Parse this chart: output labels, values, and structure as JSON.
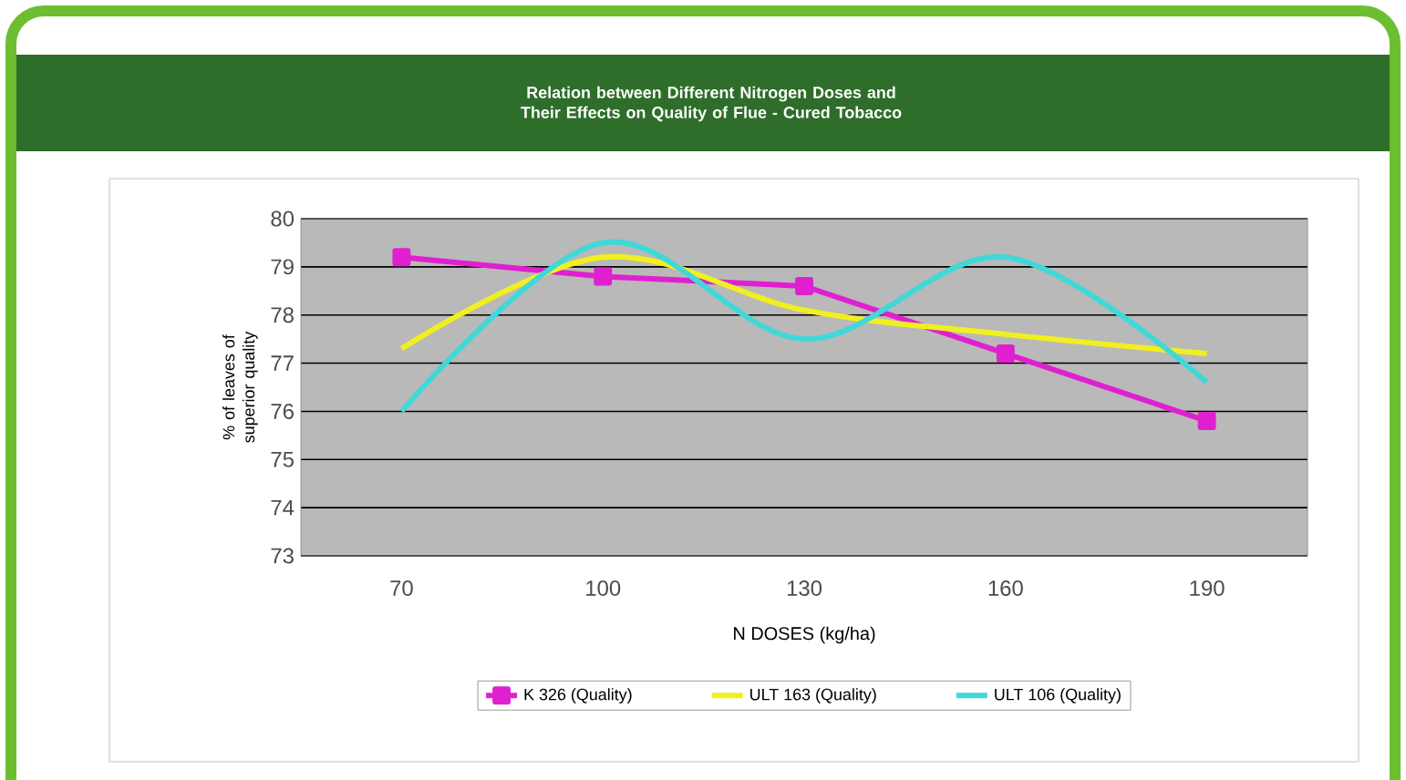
{
  "chart_data": {
    "type": "line",
    "title": "Relation between Different Nitrogen Doses and Their Effects on Quality of Flue - Cured Tobacco",
    "xlabel": "N DOSES (kg/ha)",
    "ylabel": "% of leaves of superior quality",
    "categories": [
      "70",
      "100",
      "130",
      "160",
      "190"
    ],
    "series": [
      {
        "name": "K 326 (Quality)",
        "color": "#e020d0",
        "marker": "square",
        "values": [
          79.2,
          78.8,
          78.6,
          77.2,
          75.8
        ]
      },
      {
        "name": "ULT 163 (Quality)",
        "color": "#f0f020",
        "marker": "none",
        "values": [
          77.3,
          79.2,
          78.1,
          77.6,
          77.2
        ]
      },
      {
        "name": "ULT 106 (Quality)",
        "color": "#40d8d8",
        "marker": "none",
        "values": [
          76.0,
          79.5,
          77.5,
          79.2,
          76.6
        ]
      }
    ],
    "ylim": [
      73,
      80
    ],
    "yticks": [
      73,
      74,
      75,
      76,
      77,
      78,
      79,
      80
    ],
    "grid": "y",
    "legend": "bottom"
  }
}
